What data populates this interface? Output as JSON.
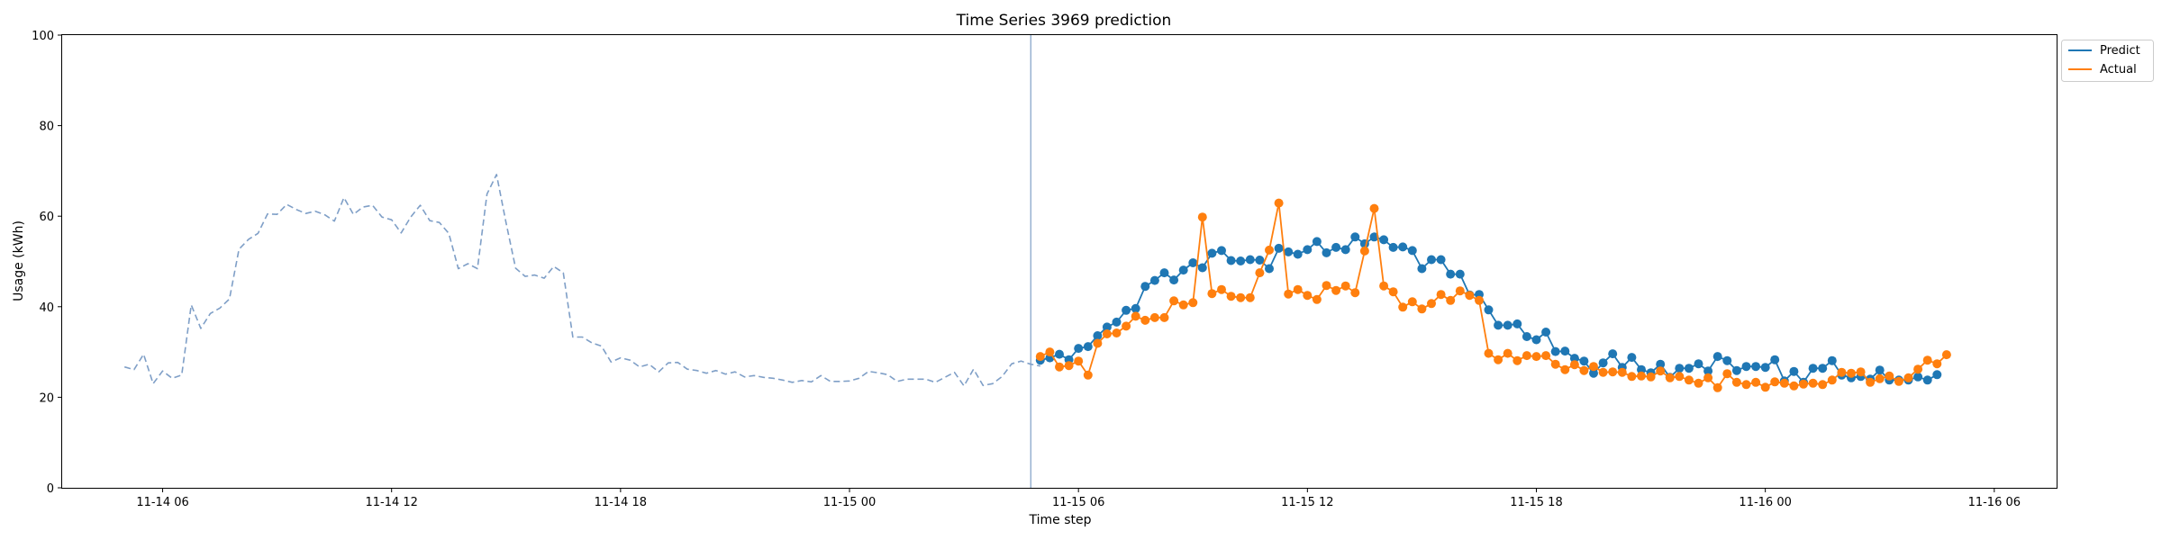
{
  "chart_data": {
    "type": "line",
    "title": "Time Series 3969 prediction",
    "xlabel": "Time step",
    "ylabel": "Usage (kWh)",
    "ylim": [
      0,
      100
    ],
    "xlim": [
      "2023-11-14 03:22",
      "2023-11-16 07:38"
    ],
    "grid": false,
    "legend_position": "top-right, outside plot",
    "x_ticks": [
      {
        "t": "2023-11-14 06:00",
        "label": "11-14 06"
      },
      {
        "t": "2023-11-14 12:00",
        "label": "11-14 12"
      },
      {
        "t": "2023-11-14 18:00",
        "label": "11-14 18"
      },
      {
        "t": "2023-11-15 00:00",
        "label": "11-15 00"
      },
      {
        "t": "2023-11-15 06:00",
        "label": "11-15 06"
      },
      {
        "t": "2023-11-15 12:00",
        "label": "11-15 12"
      },
      {
        "t": "2023-11-15 18:00",
        "label": "11-15 18"
      },
      {
        "t": "2023-11-16 00:00",
        "label": "11-16 00"
      },
      {
        "t": "2023-11-16 06:00",
        "label": "11-16 06"
      }
    ],
    "y_ticks": [
      0,
      20,
      40,
      60,
      80,
      100
    ],
    "forecast_start": "2023-11-15 04:45",
    "series": [
      {
        "key": "history",
        "style": "dashed",
        "color": "#7f9fc7",
        "start": "2023-11-14 05:00",
        "step_minutes": 15,
        "values": [
          26.7,
          26.1,
          29.5,
          23.0,
          25.8,
          24.2,
          24.9,
          40.4,
          35.2,
          38.5,
          39.7,
          41.7,
          52.7,
          54.9,
          56.2,
          60.5,
          60.4,
          62.6,
          61.5,
          60.6,
          61.1,
          60.3,
          58.9,
          64.1,
          60.4,
          62.0,
          62.4,
          59.8,
          59.2,
          56.3,
          59.8,
          62.4,
          59.0,
          58.6,
          56.2,
          48.4,
          49.5,
          48.4,
          64.9,
          69.2,
          58.5,
          48.5,
          46.7,
          47.0,
          46.3,
          48.9,
          47.5,
          33.3,
          33.3,
          32.0,
          31.3,
          27.8,
          28.7,
          28.2,
          26.7,
          27.3,
          25.6,
          27.6,
          27.7,
          26.2,
          25.9,
          25.3,
          25.9,
          25.1,
          25.6,
          24.5,
          24.8,
          24.4,
          24.2,
          23.8,
          23.3,
          23.7,
          23.4,
          24.8,
          23.5,
          23.5,
          23.6,
          24.2,
          25.7,
          25.4,
          25.0,
          23.5,
          24.0,
          24.0,
          24.0,
          23.3,
          24.4,
          25.5,
          22.5,
          26.2,
          22.6,
          23.0,
          24.6,
          27.4,
          28.0,
          27.3,
          26.9
        ]
      },
      {
        "key": "predict",
        "name": "Predict",
        "style": "solid-markers",
        "color": "#1f77b4",
        "start": "2023-11-15 05:00",
        "step_minutes": 15,
        "values": [
          28.2,
          28.7,
          29.5,
          28.3,
          30.8,
          31.2,
          33.6,
          35.5,
          36.6,
          39.2,
          39.6,
          44.5,
          45.8,
          47.5,
          45.9,
          48.1,
          49.7,
          48.6,
          51.8,
          52.4,
          50.2,
          50.1,
          50.4,
          50.3,
          48.4,
          52.9,
          52.1,
          51.6,
          52.6,
          54.4,
          51.9,
          53.1,
          52.6,
          55.4,
          53.9,
          55.4,
          54.8,
          53.1,
          53.2,
          52.4,
          48.4,
          50.4,
          50.4,
          47.2,
          47.2,
          42.6,
          42.7,
          39.3,
          35.9,
          35.9,
          36.2,
          33.4,
          32.7,
          34.4,
          30.1,
          30.2,
          28.6,
          28.0,
          25.3,
          27.6,
          29.6,
          26.6,
          28.8,
          26.1,
          25.4,
          27.3,
          24.4,
          26.4,
          26.4,
          27.4,
          25.8,
          29.0,
          28.1,
          25.9,
          26.8,
          26.8,
          26.6,
          28.3,
          23.6,
          25.7,
          23.3,
          26.4,
          26.4,
          28.1,
          24.9,
          24.3,
          24.6,
          24.0,
          26.0,
          23.8,
          23.8,
          23.8,
          24.5,
          23.8,
          25.0
        ]
      },
      {
        "key": "actual",
        "name": "Actual",
        "style": "solid-markers",
        "color": "#ff7f0e",
        "start": "2023-11-15 05:00",
        "step_minutes": 15,
        "values": [
          29.0,
          30.0,
          26.7,
          27.0,
          28.0,
          24.9,
          31.9,
          34.0,
          34.2,
          35.7,
          37.9,
          37.0,
          37.6,
          37.6,
          41.3,
          40.4,
          40.9,
          59.8,
          42.9,
          43.8,
          42.3,
          42.0,
          42.0,
          47.5,
          52.5,
          62.9,
          42.8,
          43.8,
          42.5,
          41.6,
          44.7,
          43.6,
          44.6,
          43.1,
          52.3,
          61.7,
          44.6,
          43.3,
          39.9,
          41.1,
          39.5,
          40.7,
          42.7,
          41.4,
          43.5,
          42.5,
          41.4,
          29.7,
          28.3,
          29.7,
          28.1,
          29.2,
          29.0,
          29.2,
          27.3,
          26.1,
          27.2,
          25.9,
          26.8,
          25.5,
          25.6,
          25.5,
          24.6,
          24.7,
          24.5,
          25.8,
          24.3,
          24.6,
          23.8,
          23.1,
          24.3,
          22.1,
          25.2,
          23.3,
          22.8,
          23.3,
          22.2,
          23.4,
          23.1,
          22.5,
          22.9,
          23.1,
          22.8,
          23.8,
          25.5,
          25.3,
          25.6,
          23.3,
          24.1,
          24.7,
          23.5,
          24.3,
          26.2,
          28.2,
          27.4,
          29.4
        ]
      }
    ]
  }
}
